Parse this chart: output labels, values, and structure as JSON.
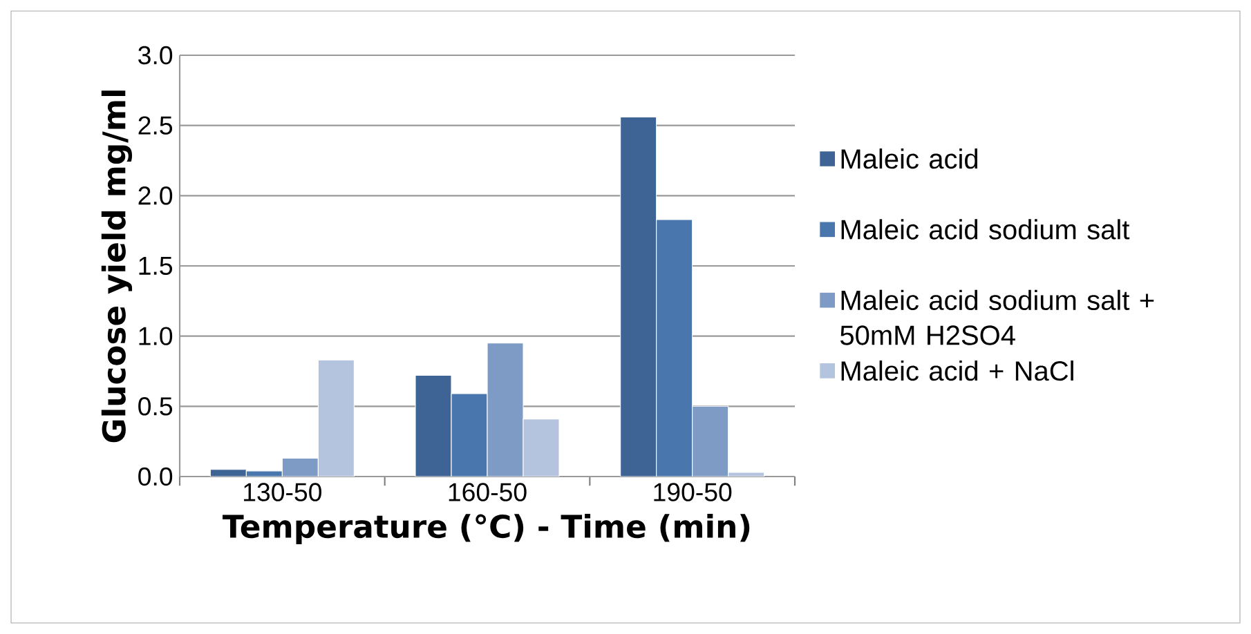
{
  "chart_data": {
    "type": "bar",
    "xlabel": "Temperature (°C) - Time (min)",
    "ylabel": "Glucose yield mg/ml",
    "categories": [
      "130-50",
      "160-50",
      "190-50"
    ],
    "series": [
      {
        "name": "Maleic acid",
        "color": "#3d6495",
        "values": [
          0.05,
          0.72,
          2.56
        ]
      },
      {
        "name": "Maleic acid sodium salt",
        "color": "#4a76ae",
        "values": [
          0.04,
          0.59,
          1.83
        ]
      },
      {
        "name": "Maleic acid sodium salt + 50mM H2SO4",
        "color": "#7e9bc6",
        "values": [
          0.13,
          0.95,
          0.5
        ]
      },
      {
        "name": "Maleic acid + NaCl",
        "color": "#b5c4de",
        "values": [
          0.83,
          0.41,
          0.03
        ]
      }
    ],
    "ylim": [
      0,
      3
    ],
    "yticks": [
      {
        "value": 0,
        "label": "0.0"
      },
      {
        "value": 0.5,
        "label": "0.5"
      },
      {
        "value": 1,
        "label": "1.0"
      },
      {
        "value": 1.5,
        "label": "1.5"
      },
      {
        "value": 2,
        "label": "2.0"
      },
      {
        "value": 2.5,
        "label": "2.5"
      },
      {
        "value": 3,
        "label": "3.0"
      }
    ],
    "grid": "y",
    "legend": "right"
  }
}
